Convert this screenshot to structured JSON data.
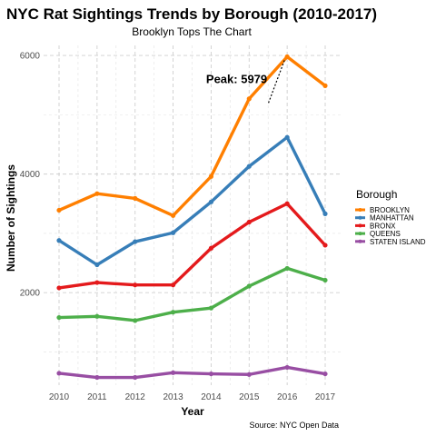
{
  "chart_data": {
    "type": "line",
    "title": "NYC Rat Sightings Trends by Borough (2010-2017)",
    "subtitle": "Brooklyn Tops The Chart",
    "xlabel": "Year",
    "ylabel": "Number of Sightings",
    "caption": "Source: NYC Open Data",
    "x": [
      2010,
      2011,
      2012,
      2013,
      2014,
      2015,
      2016,
      2017
    ],
    "xlim": [
      2010,
      2017
    ],
    "ylim": [
      440,
      6170
    ],
    "yticks": [
      2000,
      4000,
      6000
    ],
    "grid": true,
    "legend_title": "Borough",
    "legend_position": "right",
    "series": [
      {
        "name": "BROOKLYN",
        "color": "#ff7f00",
        "values": [
          3390,
          3670,
          3590,
          3300,
          3960,
          5270,
          5979,
          5490
        ]
      },
      {
        "name": "MANHATTAN",
        "color": "#377eb8",
        "values": [
          2880,
          2470,
          2860,
          3010,
          3530,
          4130,
          4620,
          3330
        ]
      },
      {
        "name": "BRONX",
        "color": "#e41a1c",
        "values": [
          2080,
          2170,
          2130,
          2130,
          2750,
          3190,
          3500,
          2800
        ]
      },
      {
        "name": "QUEENS",
        "color": "#4daf4a",
        "values": [
          1580,
          1600,
          1530,
          1670,
          1740,
          2110,
          2410,
          2210
        ]
      },
      {
        "name": "STATEN ISLAND",
        "color": "#984ea3",
        "values": [
          640,
          570,
          570,
          650,
          630,
          620,
          740,
          630
        ]
      }
    ],
    "annotation": {
      "text": "Peak: 5979",
      "x": 2016,
      "y": 5979
    }
  }
}
